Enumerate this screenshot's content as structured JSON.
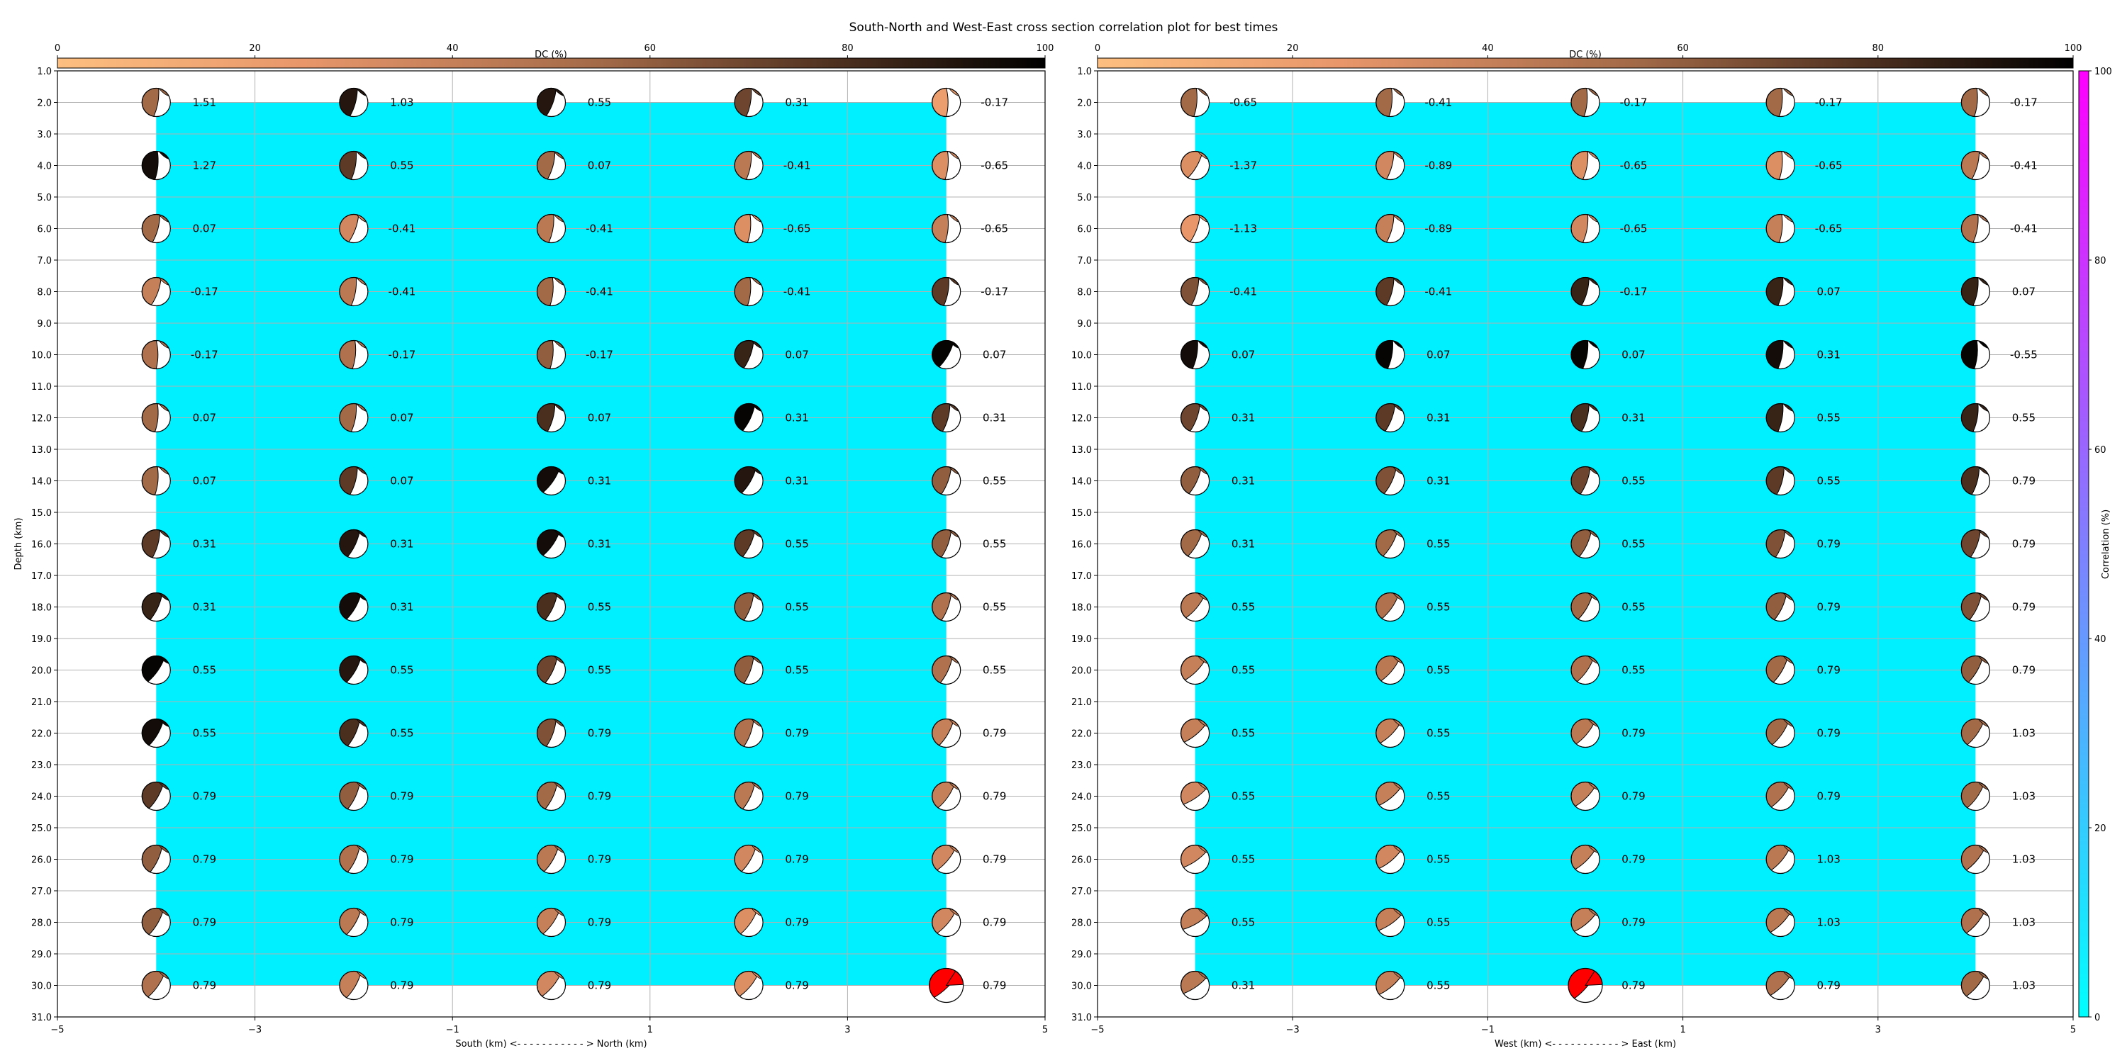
{
  "figure": {
    "title": "South-North and West-East cross section correlation plot for best times"
  },
  "dc_colorbar": {
    "label": "DC (%)",
    "ticks": [
      "0",
      "20",
      "40",
      "60",
      "80",
      "100"
    ],
    "stops": [
      "#fdbf80",
      "#e8966a",
      "#a36a48",
      "#5e3b26",
      "#000000"
    ]
  },
  "corr_colorbar": {
    "label": "Correlation (%)",
    "ticks": [
      "0",
      "20",
      "40",
      "60",
      "80",
      "100"
    ],
    "stops": [
      "#00ffff",
      "#ff00ff"
    ]
  },
  "chart_data": [
    {
      "type": "scatter",
      "title": "",
      "xlabel": "South (km) <- - - - - - - - - - - > North (km)",
      "ylabel": "Depth (km)",
      "xlim": [
        -5,
        5
      ],
      "ylim": [
        31,
        1
      ],
      "x_ticks": [
        "−5",
        "−3",
        "−1",
        "1",
        "3",
        "5"
      ],
      "y_ticks": [
        "1.0",
        "2.0",
        "3.0",
        "4.0",
        "5.0",
        "6.0",
        "7.0",
        "8.0",
        "9.0",
        "10.0",
        "11.0",
        "12.0",
        "13.0",
        "14.0",
        "15.0",
        "16.0",
        "17.0",
        "18.0",
        "19.0",
        "20.0",
        "21.0",
        "22.0",
        "23.0",
        "24.0",
        "25.0",
        "26.0",
        "27.0",
        "28.0",
        "29.0",
        "30.0",
        "31.0"
      ],
      "columns_x": [
        -4,
        -2,
        0,
        2,
        4
      ],
      "depths": [
        2,
        4,
        6,
        8,
        10,
        12,
        14,
        16,
        18,
        20,
        22,
        24,
        26,
        28,
        30
      ],
      "correlation_fill": {
        "x": [
          -4,
          4
        ],
        "y": [
          2,
          30
        ],
        "color": "#00f0ff"
      },
      "labels": [
        [
          "1.51",
          "1.03",
          "0.55",
          "0.31",
          "-0.17"
        ],
        [
          "1.27",
          "0.55",
          "0.07",
          "-0.41",
          "-0.65"
        ],
        [
          "0.07",
          "-0.41",
          "-0.41",
          "-0.65",
          "-0.65"
        ],
        [
          "-0.17",
          "-0.41",
          "-0.41",
          "-0.41",
          "-0.17"
        ],
        [
          "-0.17",
          "-0.17",
          "-0.17",
          "0.07",
          "0.07"
        ],
        [
          "0.07",
          "0.07",
          "0.07",
          "0.31",
          "0.31"
        ],
        [
          "0.07",
          "0.07",
          "0.31",
          "0.31",
          "0.55"
        ],
        [
          "0.31",
          "0.31",
          "0.31",
          "0.55",
          "0.55"
        ],
        [
          "0.31",
          "0.31",
          "0.55",
          "0.55",
          "0.55"
        ],
        [
          "0.55",
          "0.55",
          "0.55",
          "0.55",
          "0.55"
        ],
        [
          "0.55",
          "0.55",
          "0.79",
          "0.79",
          "0.79"
        ],
        [
          "0.79",
          "0.79",
          "0.79",
          "0.79",
          "0.79"
        ],
        [
          "0.79",
          "0.79",
          "0.79",
          "0.79",
          "0.79"
        ],
        [
          "0.79",
          "0.79",
          "0.79",
          "0.79",
          "0.79"
        ],
        [
          "0.79",
          "0.79",
          "0.79",
          "0.79",
          "0.79"
        ]
      ],
      "mechanisms": [
        {
          "dc": 60,
          "strike": 10,
          "dip": 80,
          "rake": 0,
          "highlight": false
        }
      ],
      "dc_grid": [
        [
          55,
          90,
          90,
          70,
          20
        ],
        [
          95,
          75,
          55,
          45,
          30
        ],
        [
          55,
          35,
          45,
          30,
          40
        ],
        [
          40,
          45,
          55,
          55,
          75
        ],
        [
          50,
          50,
          60,
          85,
          98
        ],
        [
          55,
          55,
          80,
          98,
          75
        ],
        [
          55,
          75,
          95,
          90,
          60
        ],
        [
          75,
          90,
          95,
          75,
          60
        ],
        [
          85,
          95,
          80,
          60,
          50
        ],
        [
          98,
          90,
          70,
          60,
          50
        ],
        [
          95,
          80,
          65,
          50,
          40
        ],
        [
          75,
          60,
          55,
          45,
          40
        ],
        [
          60,
          50,
          45,
          35,
          35
        ],
        [
          60,
          45,
          40,
          30,
          35
        ],
        [
          50,
          40,
          35,
          30,
          0
        ]
      ],
      "strike_grid": [
        [
          10,
          15,
          20,
          10,
          0
        ],
        [
          5,
          10,
          15,
          10,
          5
        ],
        [
          15,
          20,
          10,
          5,
          5
        ],
        [
          20,
          10,
          5,
          5,
          10
        ],
        [
          0,
          5,
          5,
          20,
          30
        ],
        [
          5,
          10,
          15,
          25,
          15
        ],
        [
          5,
          15,
          35,
          30,
          20
        ],
        [
          15,
          25,
          35,
          25,
          20
        ],
        [
          25,
          30,
          25,
          20,
          20
        ],
        [
          35,
          30,
          25,
          20,
          25
        ],
        [
          30,
          25,
          20,
          20,
          30
        ],
        [
          30,
          25,
          25,
          25,
          35
        ],
        [
          25,
          25,
          30,
          30,
          40
        ],
        [
          30,
          30,
          35,
          35,
          40
        ],
        [
          35,
          30,
          40,
          40,
          45
        ]
      ],
      "red_cells": [
        [
          14,
          4
        ]
      ]
    },
    {
      "type": "scatter",
      "title": "",
      "xlabel": "West (km) <- - - - - - - - - - - > East (km)",
      "ylabel": "",
      "xlim": [
        -5,
        5
      ],
      "ylim": [
        31,
        1
      ],
      "x_ticks": [
        "−5",
        "−3",
        "−1",
        "1",
        "3",
        "5"
      ],
      "y_ticks": [
        "1.0",
        "2.0",
        "3.0",
        "4.0",
        "5.0",
        "6.0",
        "7.0",
        "8.0",
        "9.0",
        "10.0",
        "11.0",
        "12.0",
        "13.0",
        "14.0",
        "15.0",
        "16.0",
        "17.0",
        "18.0",
        "19.0",
        "20.0",
        "21.0",
        "22.0",
        "23.0",
        "24.0",
        "25.0",
        "26.0",
        "27.0",
        "28.0",
        "29.0",
        "30.0",
        "31.0"
      ],
      "columns_x": [
        -4,
        -2,
        0,
        2,
        4
      ],
      "depths": [
        2,
        4,
        6,
        8,
        10,
        12,
        14,
        16,
        18,
        20,
        22,
        24,
        26,
        28,
        30
      ],
      "correlation_fill": {
        "x": [
          -4,
          4
        ],
        "y": [
          2,
          30
        ],
        "color": "#00f0ff"
      },
      "labels": [
        [
          "-0.65",
          "-0.41",
          "-0.17",
          "-0.17",
          "-0.17"
        ],
        [
          "-1.37",
          "-0.89",
          "-0.65",
          "-0.65",
          "-0.41"
        ],
        [
          "-1.13",
          "-0.89",
          "-0.65",
          "-0.65",
          "-0.41"
        ],
        [
          "-0.41",
          "-0.41",
          "-0.17",
          "0.07",
          "0.07"
        ],
        [
          "0.07",
          "0.07",
          "0.07",
          "0.31",
          "-0.55"
        ],
        [
          "0.31",
          "0.31",
          "0.31",
          "0.55",
          "0.55"
        ],
        [
          "0.31",
          "0.31",
          "0.55",
          "0.55",
          "0.79"
        ],
        [
          "0.31",
          "0.55",
          "0.55",
          "0.79",
          "0.79"
        ],
        [
          "0.55",
          "0.55",
          "0.55",
          "0.79",
          "0.79"
        ],
        [
          "0.55",
          "0.55",
          "0.55",
          "0.79",
          "0.79"
        ],
        [
          "0.55",
          "0.55",
          "0.79",
          "0.79",
          "1.03"
        ],
        [
          "0.55",
          "0.55",
          "0.79",
          "0.79",
          "1.03"
        ],
        [
          "0.55",
          "0.55",
          "0.79",
          "1.03",
          "1.03"
        ],
        [
          "0.55",
          "0.55",
          "0.79",
          "1.03",
          "1.03"
        ],
        [
          "0.31",
          "0.55",
          "0.79",
          "0.79",
          "1.03"
        ]
      ],
      "dc_grid": [
        [
          55,
          55,
          55,
          55,
          55
        ],
        [
          30,
          35,
          30,
          30,
          45
        ],
        [
          25,
          40,
          35,
          40,
          50
        ],
        [
          65,
          75,
          85,
          85,
          85
        ],
        [
          95,
          98,
          98,
          95,
          98
        ],
        [
          70,
          75,
          80,
          85,
          85
        ],
        [
          60,
          65,
          70,
          75,
          80
        ],
        [
          55,
          55,
          60,
          65,
          70
        ],
        [
          45,
          50,
          55,
          60,
          65
        ],
        [
          40,
          45,
          50,
          55,
          60
        ],
        [
          40,
          40,
          45,
          55,
          55
        ],
        [
          35,
          40,
          40,
          50,
          55
        ],
        [
          35,
          35,
          40,
          45,
          50
        ],
        [
          40,
          40,
          40,
          45,
          50
        ],
        [
          45,
          40,
          0,
          50,
          55
        ]
      ],
      "strike_grid": [
        [
          5,
          5,
          5,
          5,
          5
        ],
        [
          30,
          15,
          10,
          5,
          15
        ],
        [
          20,
          15,
          10,
          5,
          10
        ],
        [
          15,
          15,
          15,
          10,
          10
        ],
        [
          10,
          10,
          10,
          10,
          5
        ],
        [
          20,
          20,
          15,
          10,
          10
        ],
        [
          25,
          25,
          20,
          15,
          15
        ],
        [
          30,
          30,
          25,
          20,
          20
        ],
        [
          40,
          35,
          30,
          25,
          25
        ],
        [
          45,
          40,
          35,
          30,
          30
        ],
        [
          50,
          45,
          40,
          35,
          35
        ],
        [
          55,
          50,
          45,
          40,
          35
        ],
        [
          55,
          50,
          45,
          40,
          40
        ],
        [
          60,
          55,
          50,
          45,
          40
        ],
        [
          55,
          50,
          40,
          45,
          40
        ]
      ],
      "red_cells": [
        [
          14,
          2
        ]
      ]
    }
  ]
}
